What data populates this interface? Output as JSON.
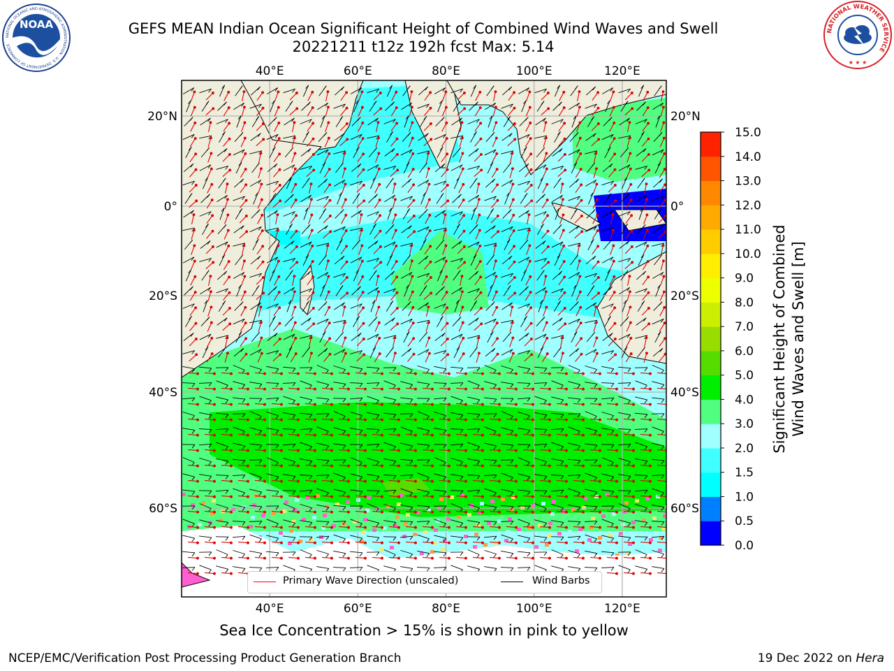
{
  "title": {
    "line1": "GEFS MEAN Indian Ocean Significant Height of Combined Wind Waves and Swell",
    "line2": "20221211 t12z 192h fcst   Max: 5.14"
  },
  "map": {
    "lon_ticks": [
      "40°E",
      "60°E",
      "80°E",
      "100°E",
      "120°E"
    ],
    "lat_ticks": [
      "20°N",
      "0°",
      "20°S",
      "40°S",
      "60°S"
    ],
    "lon_values": [
      40,
      60,
      80,
      100,
      120
    ],
    "lat_values": [
      20,
      0,
      -20,
      -40,
      -60
    ],
    "colors": {
      "land": "#efeedc",
      "grid": "#b4b4b4",
      "coast": "#000000",
      "ice_pink": "#ff5fd1",
      "ice_white": "#ffffff"
    }
  },
  "legend": {
    "wave_direction": "Primary Wave Direction (unscaled)",
    "wind_barbs": "Wind Barbs",
    "wave_color": "#ff0000",
    "barb_color": "#000000"
  },
  "colorbar": {
    "label_line1": "Significant Height of Combined",
    "label_line2": "Wind Waves and Swell [m]",
    "ticks": [
      "0.0",
      "0.5",
      "1.0",
      "1.5",
      "2.0",
      "3.0",
      "4.0",
      "5.0",
      "6.0",
      "7.0",
      "8.0",
      "9.0",
      "10.0",
      "11.0",
      "12.0",
      "13.0",
      "14.0",
      "15.0"
    ],
    "colors": [
      "#0000ff",
      "#0080ff",
      "#00ffff",
      "#40ffff",
      "#a0ffff",
      "#50ff80",
      "#00ee00",
      "#55dd00",
      "#99dd00",
      "#ccee00",
      "#eeff00",
      "#ffee00",
      "#ffcc00",
      "#ffaa00",
      "#ff8800",
      "#ff5500",
      "#ff2200"
    ]
  },
  "sea_ice_note": "Sea Ice Concentration > 15% is shown in pink to yellow",
  "footer": {
    "left": "NCEP/EMC/Verification Post Processing Product Generation Branch",
    "right_prefix": "19 Dec 2022 on ",
    "right_host": "Hera"
  },
  "logos": {
    "noaa_text": "NOAA",
    "noaa_ring": "NATIONAL OCEANIC AND ATMOSPHERIC ADMINISTRATION · U.S. DEPARTMENT OF COMMERCE",
    "nws_ring": "NATIONAL WEATHER SERVICE"
  }
}
